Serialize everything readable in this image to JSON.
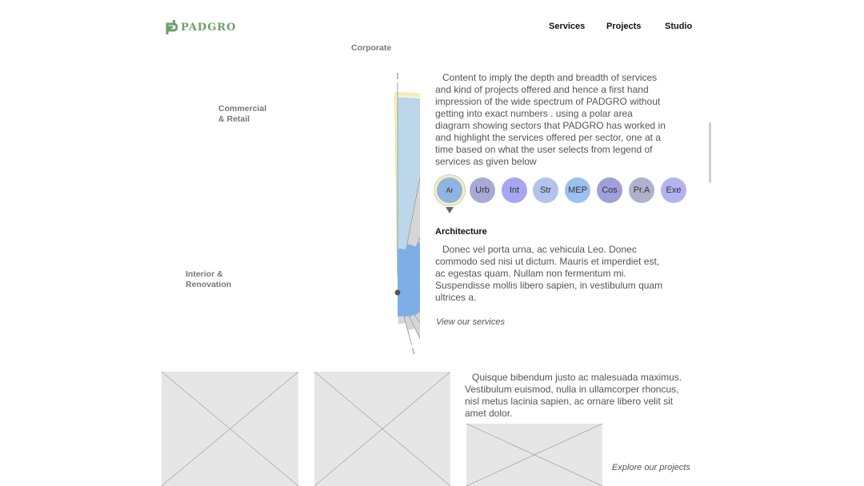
{
  "header": {
    "logo_text": "PADGRO",
    "nav": [
      {
        "label": "Services"
      },
      {
        "label": "Projects"
      },
      {
        "label": "Studio"
      }
    ]
  },
  "chart": {
    "labels": {
      "corporate": "Corporate",
      "commercial_line1": "Commercial",
      "commercial_line2": "& Retail",
      "interior_line1": "Interior &",
      "interior_line2": "Renovation"
    },
    "colors": {
      "grey_sector": "#d6d6d6",
      "highlight_sector": "#bcd6ea",
      "highlight_glow": "#f3f0b8",
      "core": "#7faee6"
    }
  },
  "intro_text": "Content to imply the depth and breadth of services and kind of projects offered and hence a first hand impression of the wide spectrum of PADGRO without getting into exact numbers . using a polar area diagram showing sectors that PADGRO has worked in and highlight the services offered per sector, one at a time based on what the user selects from legend of services as given below",
  "services": [
    {
      "label": "Ar",
      "color": "#8fb3e3",
      "active": true
    },
    {
      "label": "Urb",
      "color": "#a9a9d6"
    },
    {
      "label": "Int",
      "color": "#a6a6f2"
    },
    {
      "label": "Str",
      "color": "#b3c3ee"
    },
    {
      "label": "MEP",
      "color": "#9cc0f0"
    },
    {
      "label": "Cos",
      "color": "#9f9fd9"
    },
    {
      "label": "Pr.A",
      "color": "#b0b0cf"
    },
    {
      "label": "Exe",
      "color": "#b3b3f0"
    }
  ],
  "selected_service": {
    "title": "Architecture",
    "description": "Donec vel porta urna, ac vehicula Leo. Donec commodo sed nisi ut dictum. Mauris et imperdiet est, ac egestas quam. Nullam non fermentum mi. Suspendisse mollis libero sapien, in vestibulum quam ultrices a.",
    "link": "View our services"
  },
  "projects": {
    "text": "Quisque bibendum justo ac malesuada maximus. Vestibulum euismod, nulla in ullamcorper rhoncus, nisl metus lacinia sapien, ac ornare libero velit sit amet dolor.",
    "link": "Explore our projects"
  }
}
